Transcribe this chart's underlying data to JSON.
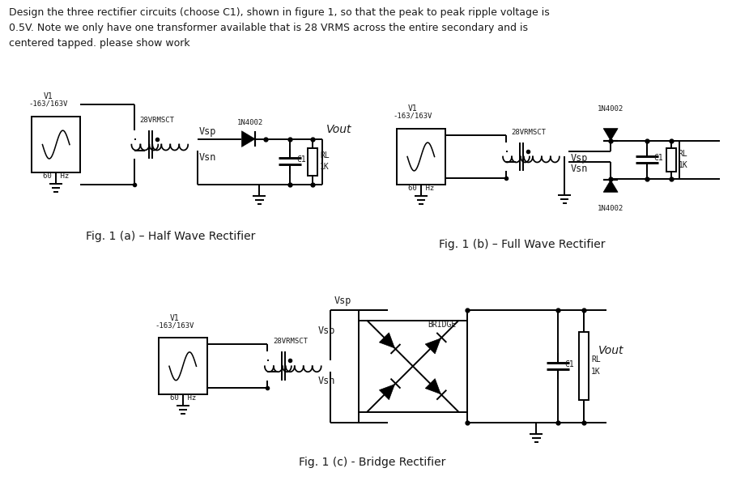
{
  "bg_color": "#ffffff",
  "text_color": "#1a1a1a",
  "header_text": "Design the three rectifier circuits (choose C1), shown in figure 1, so that the peak to peak ripple voltage is\n0.5V. Note we only have one transformer available that is 28 VRMS across the entire secondary and is\ncentered tapped. please show work",
  "fig1a_caption": "Fig. 1 (a) – Half Wave Rectifier",
  "fig1b_caption": "Fig. 1 (b) – Full Wave Rectifier",
  "fig1c_caption": "Fig. 1 (c) - Bridge Rectifier",
  "lw": 1.4
}
